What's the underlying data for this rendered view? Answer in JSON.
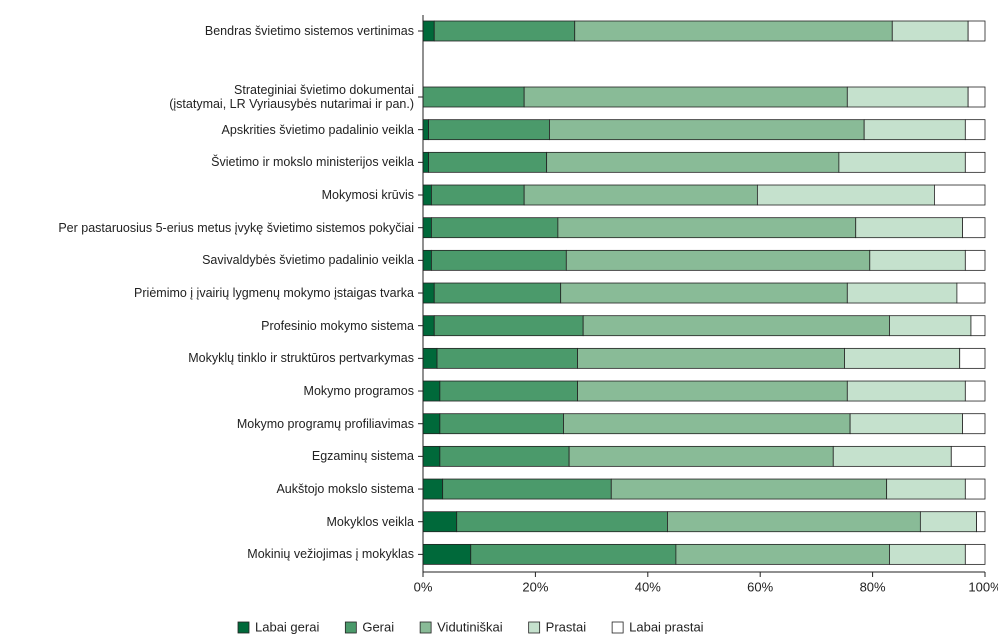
{
  "chart_data": {
    "type": "stacked-bar-horizontal",
    "categories": [
      "Bendras švietimo sistemos vertinimas",
      "Strateginiai švietimo dokumentai\n(įstatymai, LR Vyriausybės nutarimai ir pan.)",
      "Apskrities švietimo padalinio veikla",
      "Švietimo ir mokslo ministerijos veikla",
      "Mokymosi krūvis",
      "Per pastaruosius 5-erius metus įvykę švietimo sistemos pokyčiai",
      "Savivaldybės švietimo padalinio veikla",
      "Priėmimo į įvairių lygmenų mokymo įstaigas tvarka",
      "Profesinio mokymo sistema",
      "Mokyklų tinklo ir struktūros pertvarkymas",
      "Mokymo programos",
      "Mokymo programų profiliavimas",
      "Egzaminų sistema",
      "Aukštojo mokslo sistema",
      "Mokyklos veikla",
      "Mokinių vežiojimas į mokyklas"
    ],
    "series": [
      {
        "name": "Labai gerai",
        "color": "#00693a",
        "values": [
          2,
          0,
          1,
          1,
          1.5,
          1.5,
          1.5,
          2,
          2,
          2.5,
          3,
          3,
          3,
          3.5,
          6,
          8.5
        ]
      },
      {
        "name": "Gerai",
        "color": "#4b9a6b",
        "values": [
          25,
          18,
          21.5,
          21,
          16.5,
          22.5,
          24,
          22.5,
          26.5,
          25,
          24.5,
          22,
          23,
          30,
          37.5,
          36.5
        ]
      },
      {
        "name": "Vidutiniškai",
        "color": "#89bb97",
        "values": [
          56.5,
          57.5,
          56,
          52,
          41.5,
          53,
          54,
          51,
          54.5,
          47.5,
          48,
          51,
          47,
          49,
          45,
          38
        ]
      },
      {
        "name": "Prastai",
        "color": "#c5e1cd",
        "values": [
          13.5,
          21.5,
          18,
          22.5,
          31.5,
          19,
          17,
          19.5,
          14.5,
          20.5,
          21,
          20,
          21,
          14,
          10,
          13.5
        ]
      },
      {
        "name": "Labai prastai",
        "color": "#ffffff",
        "values": [
          3,
          3,
          3.5,
          3.5,
          9,
          4,
          3.5,
          5,
          2.5,
          4.5,
          3.5,
          4,
          6,
          3.5,
          1.5,
          3.5
        ]
      }
    ],
    "xlim": [
      0,
      100
    ],
    "xticks": [
      {
        "value": 0,
        "label": "0%"
      },
      {
        "value": 20,
        "label": "20%"
      },
      {
        "value": 40,
        "label": "40%"
      },
      {
        "value": 60,
        "label": "60%"
      },
      {
        "value": 80,
        "label": "80%"
      },
      {
        "value": 100,
        "label": "100%"
      }
    ],
    "legend": "bottom"
  }
}
